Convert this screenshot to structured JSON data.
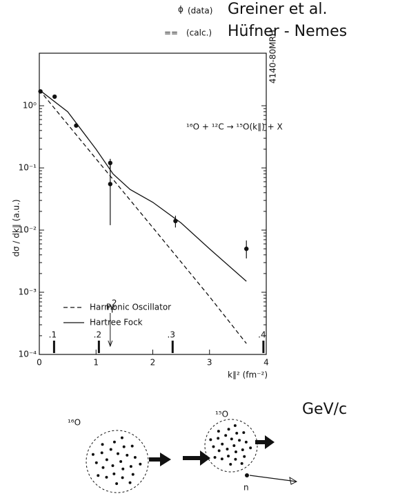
{
  "chart_data": {
    "type": "scatter",
    "header": [
      {
        "symbol": "ɸ",
        "label": "(data)",
        "source": "Greiner et al."
      },
      {
        "symbol": "==",
        "label": "(calc.)",
        "source": "Hüfner - Nemes"
      }
    ],
    "reaction": "¹⁶O + ¹²C → ¹⁵O(k∥) + X",
    "side_note": "4140-80MRH",
    "y_label": "dσ / dk∥ (a.u.)",
    "x_label": "k∥² (fm⁻²)",
    "log_y": true,
    "xlim": [
      0,
      4
    ],
    "xticks": [
      0,
      1,
      2,
      3,
      4
    ],
    "ylim": [
      0.0001,
      7
    ],
    "yticks": [
      {
        "value": 0.0001,
        "label": "10⁻⁴"
      },
      {
        "value": 0.001,
        "label": "10⁻³"
      },
      {
        "value": 0.01,
        "label": "10⁻²"
      },
      {
        "value": 0.1,
        "label": "10⁻¹"
      },
      {
        "value": 1,
        "label": "10⁰"
      }
    ],
    "x": [
      0.02,
      0.27,
      0.65,
      1.25,
      1.25,
      2.4,
      3.65
    ],
    "values": [
      1.7,
      1.4,
      0.48,
      0.12,
      0.055,
      0.014,
      0.005
    ],
    "ylow": [
      null,
      null,
      null,
      0.09,
      0.012,
      0.011,
      0.0035
    ],
    "yhigh": [
      null,
      null,
      null,
      0.14,
      0.11,
      0.017,
      0.0068
    ],
    "color": "#111111",
    "curves": [
      {
        "name": "Harmonic Oscillator",
        "style": "dashed",
        "x": [
          0,
          1,
          2,
          3,
          3.65
        ],
        "values": [
          1.8,
          0.14,
          0.011,
          0.00085,
          0.00015
        ]
      },
      {
        "name": "Hartree Fock",
        "style": "solid",
        "x": [
          0,
          0.5,
          1,
          1.3,
          1.6,
          2,
          2.5,
          3,
          3.65
        ],
        "values": [
          1.8,
          0.8,
          0.2,
          0.08,
          0.045,
          0.028,
          0.013,
          0.005,
          0.0015
        ]
      }
    ],
    "momentum_ticks": [
      {
        "value": 0.26,
        "label": ".1"
      },
      {
        "value": 1.05,
        "label": ".2"
      },
      {
        "value": 2.35,
        "label": ".3"
      },
      {
        "value": 3.95,
        "label": ".4"
      }
    ],
    "momentum_unit": "GeV/c",
    "fermi_marker": {
      "value": 1.25,
      "label": "P",
      "sub": "F",
      "sup": "2"
    },
    "diagram": {
      "initial": "¹⁶O",
      "final": "¹⁵O",
      "ejected": "n"
    }
  }
}
